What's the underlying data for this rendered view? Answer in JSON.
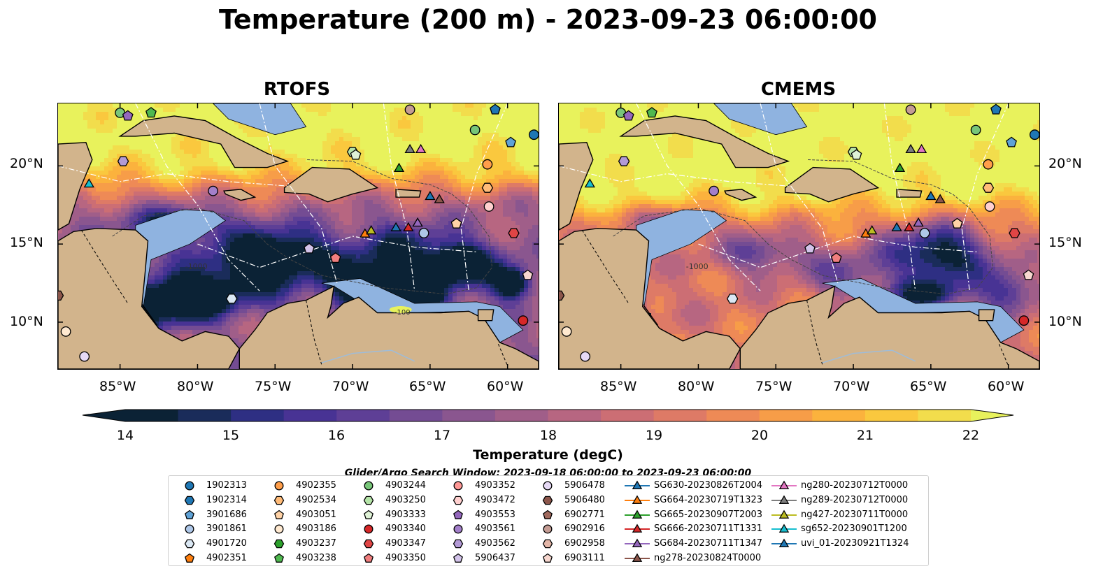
{
  "title": "Temperature (200 m) - 2023-09-23 06:00:00",
  "panels": [
    {
      "title": "RTOFS"
    },
    {
      "title": "CMEMS"
    }
  ],
  "map": {
    "lon_range": [
      -89,
      -58
    ],
    "lat_range": [
      7,
      24
    ],
    "lat_ticks": [
      "10°N",
      "15°N",
      "20°N"
    ],
    "lon_ticks": [
      "85°W",
      "80°W",
      "75°W",
      "70°W",
      "65°W",
      "60°W"
    ],
    "colors": {
      "land": "#d2b48c",
      "shelf": "#8fb3e0",
      "deep": "#0b2235"
    },
    "contour_labels": [
      "-1000",
      "-100"
    ]
  },
  "colorbar": {
    "label": "Temperature (degC)",
    "ticks": [
      "14",
      "15",
      "16",
      "17",
      "18",
      "19",
      "20",
      "21",
      "22"
    ],
    "min": 14,
    "max": 22,
    "colors": [
      "#0b2235",
      "#1a2c5a",
      "#2e2f83",
      "#483394",
      "#5e3f96",
      "#744c93",
      "#8a568f",
      "#a05e89",
      "#b76681",
      "#cc6e74",
      "#de7a66",
      "#ee8a56",
      "#f79d48",
      "#fbb23d",
      "#fac83e",
      "#f2dd4c",
      "#e8f25c"
    ]
  },
  "legend": {
    "title": "Glider/Argo Search Window: 2023-09-18 06:00:00 to 2023-09-23 06:00:00",
    "items": [
      {
        "label": "1902313",
        "shape": "circle",
        "color": "#1f77b4"
      },
      {
        "label": "1902314",
        "shape": "hexagon",
        "color": "#1f77b4"
      },
      {
        "label": "3901686",
        "shape": "pentagon",
        "color": "#5fa2d6"
      },
      {
        "label": "3901861",
        "shape": "circle",
        "color": "#aec7e8"
      },
      {
        "label": "4901720",
        "shape": "hexagon",
        "color": "#dbe8f4"
      },
      {
        "label": "4902351",
        "shape": "pentagon",
        "color": "#ff7f0e"
      },
      {
        "label": "4902355",
        "shape": "circle",
        "color": "#ff9e4a"
      },
      {
        "label": "4902534",
        "shape": "hexagon",
        "color": "#ffbb78"
      },
      {
        "label": "4903051",
        "shape": "pentagon",
        "color": "#ffd2a6"
      },
      {
        "label": "4903186",
        "shape": "circle",
        "color": "#ffe9d0"
      },
      {
        "label": "4903237",
        "shape": "hexagon",
        "color": "#2ca02c"
      },
      {
        "label": "4903238",
        "shape": "pentagon",
        "color": "#4fb84f"
      },
      {
        "label": "4903244",
        "shape": "circle",
        "color": "#78c679"
      },
      {
        "label": "4903250",
        "shape": "hexagon",
        "color": "#b5e4a8"
      },
      {
        "label": "4903333",
        "shape": "pentagon",
        "color": "#dff2d6"
      },
      {
        "label": "4903340",
        "shape": "circle",
        "color": "#d62728"
      },
      {
        "label": "4903347",
        "shape": "hexagon",
        "color": "#e04545"
      },
      {
        "label": "4903350",
        "shape": "pentagon",
        "color": "#f07e7e"
      },
      {
        "label": "4903352",
        "shape": "circle",
        "color": "#ff9896"
      },
      {
        "label": "4903472",
        "shape": "hexagon",
        "color": "#ffd0cf"
      },
      {
        "label": "4903553",
        "shape": "pentagon",
        "color": "#9467bd"
      },
      {
        "label": "4903561",
        "shape": "circle",
        "color": "#a37fca"
      },
      {
        "label": "4903562",
        "shape": "hexagon",
        "color": "#b39ad6"
      },
      {
        "label": "5906437",
        "shape": "pentagon",
        "color": "#d3c3ea"
      },
      {
        "label": "5906478",
        "shape": "circle",
        "color": "#e6d9f5"
      },
      {
        "label": "5906480",
        "shape": "hexagon",
        "color": "#8c564b"
      },
      {
        "label": "6902771",
        "shape": "pentagon",
        "color": "#a0695d"
      },
      {
        "label": "6902916",
        "shape": "circle",
        "color": "#c49c94"
      },
      {
        "label": "6902958",
        "shape": "hexagon",
        "color": "#e3b6a8"
      },
      {
        "label": "6903111",
        "shape": "pentagon",
        "color": "#f7d7cf"
      },
      {
        "label": "SG630-20230826T2004",
        "shape": "triangle-line",
        "color": "#1f77b4"
      },
      {
        "label": "SG664-20230719T1323",
        "shape": "triangle-line",
        "color": "#ff7f0e"
      },
      {
        "label": "SG665-20230907T2003",
        "shape": "triangle-line",
        "color": "#2ca02c"
      },
      {
        "label": "SG666-20230711T1331",
        "shape": "triangle-line",
        "color": "#d62728"
      },
      {
        "label": "SG684-20230711T1347",
        "shape": "triangle-line",
        "color": "#9467bd"
      },
      {
        "label": "ng278-20230824T0000",
        "shape": "triangle-line",
        "color": "#8c564b"
      },
      {
        "label": "ng280-20230712T0000",
        "shape": "triangle-line",
        "color": "#e377c2"
      },
      {
        "label": "ng289-20230712T0000",
        "shape": "triangle-line",
        "color": "#7f7f7f"
      },
      {
        "label": "ng427-20230711T0000",
        "shape": "triangle-line",
        "color": "#bcbd22"
      },
      {
        "label": "sg652-20230901T1200",
        "shape": "triangle-line",
        "color": "#17becf"
      },
      {
        "label": "uvi_01-20230921T1324",
        "shape": "triangle-line",
        "color": "#1f77b4"
      }
    ]
  },
  "markers": [
    {
      "lon": -88.5,
      "lat": 9.4,
      "shape": "circle",
      "color": "#ffe9d0"
    },
    {
      "lon": -87.3,
      "lat": 7.8,
      "shape": "circle",
      "color": "#e6d9f5"
    },
    {
      "lon": -89.0,
      "lat": 11.7,
      "shape": "hexagon",
      "color": "#8c564b"
    },
    {
      "lon": -87.0,
      "lat": 18.9,
      "shape": "triangle",
      "color": "#17becf"
    },
    {
      "lon": -85.0,
      "lat": 23.4,
      "shape": "circle",
      "color": "#78c679"
    },
    {
      "lon": -84.5,
      "lat": 23.2,
      "shape": "pentagon",
      "color": "#9467bd"
    },
    {
      "lon": -83.0,
      "lat": 23.4,
      "shape": "pentagon",
      "color": "#4fb84f"
    },
    {
      "lon": -84.8,
      "lat": 20.3,
      "shape": "hexagon",
      "color": "#b39ad6"
    },
    {
      "lon": -79.0,
      "lat": 18.4,
      "shape": "circle",
      "color": "#a37fca"
    },
    {
      "lon": -77.8,
      "lat": 11.5,
      "shape": "hexagon",
      "color": "#dbe8f4"
    },
    {
      "lon": -72.8,
      "lat": 14.7,
      "shape": "pentagon",
      "color": "#d3c3ea"
    },
    {
      "lon": -71.1,
      "lat": 14.1,
      "shape": "pentagon",
      "color": "#f07e7e"
    },
    {
      "lon": -70.0,
      "lat": 20.9,
      "shape": "hexagon",
      "color": "#b5e4a8"
    },
    {
      "lon": -69.8,
      "lat": 20.7,
      "shape": "pentagon",
      "color": "#dff2d6"
    },
    {
      "lon": -67.0,
      "lat": 19.9,
      "shape": "triangle",
      "color": "#2ca02c"
    },
    {
      "lon": -66.3,
      "lat": 21.1,
      "shape": "triangle",
      "color": "#7f7f7f"
    },
    {
      "lon": -65.6,
      "lat": 21.1,
      "shape": "triangle",
      "color": "#e377c2"
    },
    {
      "lon": -66.3,
      "lat": 23.6,
      "shape": "circle",
      "color": "#c49c94"
    },
    {
      "lon": -62.1,
      "lat": 22.3,
      "shape": "circle",
      "color": "#78c679"
    },
    {
      "lon": -61.3,
      "lat": 20.1,
      "shape": "circle",
      "color": "#ff9e4a"
    },
    {
      "lon": -61.3,
      "lat": 18.6,
      "shape": "hexagon",
      "color": "#ffbb78"
    },
    {
      "lon": -60.8,
      "lat": 23.6,
      "shape": "pentagon",
      "color": "#1f77b4"
    },
    {
      "lon": -59.8,
      "lat": 21.5,
      "shape": "pentagon",
      "color": "#5fa2d6"
    },
    {
      "lon": -58.3,
      "lat": 22.0,
      "shape": "circle",
      "color": "#1f77b4"
    },
    {
      "lon": -65.0,
      "lat": 18.1,
      "shape": "triangle",
      "color": "#1f77b4"
    },
    {
      "lon": -64.4,
      "lat": 17.9,
      "shape": "triangle",
      "color": "#8c564b"
    },
    {
      "lon": -69.2,
      "lat": 15.7,
      "shape": "triangle",
      "color": "#ff7f0e"
    },
    {
      "lon": -68.8,
      "lat": 15.9,
      "shape": "triangle",
      "color": "#bcbd22"
    },
    {
      "lon": -67.2,
      "lat": 16.1,
      "shape": "triangle",
      "color": "#1f77b4"
    },
    {
      "lon": -66.4,
      "lat": 16.1,
      "shape": "triangle",
      "color": "#d62728"
    },
    {
      "lon": -65.8,
      "lat": 16.4,
      "shape": "triangle",
      "color": "#9467bd"
    },
    {
      "lon": -65.4,
      "lat": 15.7,
      "shape": "circle",
      "color": "#aec7e8"
    },
    {
      "lon": -63.3,
      "lat": 16.3,
      "shape": "pentagon",
      "color": "#ffd2a6"
    },
    {
      "lon": -61.2,
      "lat": 17.4,
      "shape": "circle",
      "color": "#ffd0cf"
    },
    {
      "lon": -59.6,
      "lat": 15.7,
      "shape": "hexagon",
      "color": "#e04545"
    },
    {
      "lon": -58.7,
      "lat": 13.0,
      "shape": "pentagon",
      "color": "#f7d7cf"
    },
    {
      "lon": -59.0,
      "lat": 10.1,
      "shape": "circle",
      "color": "#d62728"
    }
  ]
}
